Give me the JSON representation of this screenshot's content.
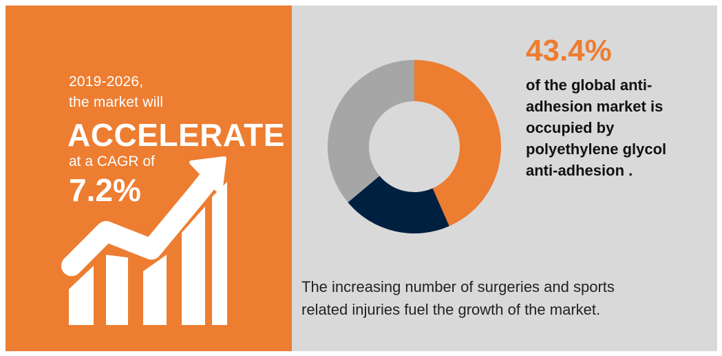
{
  "colors": {
    "orange": "#ED7D31",
    "navy": "#002040",
    "gray": "#A6A6A6",
    "panel_gray": "#D9D9D9",
    "white": "#FFFFFF"
  },
  "left_panel": {
    "intro_line1": "2019-2026,",
    "intro_line2": "the market will",
    "headline": "ACCELERATE",
    "cagr_prefix": "at a CAGR of",
    "cagr_value": "7.2%",
    "icon": "growth-chart-arrow-icon"
  },
  "right_panel": {
    "share_value": "43.4%",
    "share_caption": "of the global  anti-\nadhesion market is\noccupied by\npolyethylene glycol\nanti-adhesion .",
    "driver_text": "The increasing number of surgeries and sports\nrelated injuries fuel the growth of the market."
  },
  "chart_data": {
    "type": "pie",
    "donut": true,
    "values": [
      43.4,
      20.5,
      36.1
    ],
    "colors": [
      "#ED7D31",
      "#002040",
      "#A6A6A6"
    ],
    "title": "",
    "xlabel": "",
    "ylabel": ""
  }
}
